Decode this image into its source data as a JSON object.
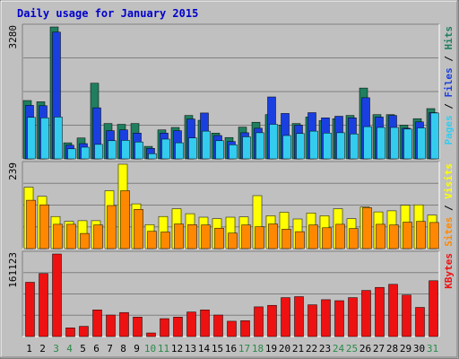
{
  "chart_data": {
    "type": "bar",
    "title": "Daily usage for January 2015",
    "categories": [
      "1",
      "2",
      "3",
      "4",
      "5",
      "6",
      "7",
      "8",
      "9",
      "10",
      "11",
      "12",
      "13",
      "14",
      "15",
      "16",
      "17",
      "18",
      "19",
      "20",
      "21",
      "22",
      "23",
      "24",
      "25",
      "26",
      "27",
      "28",
      "29",
      "30",
      "31"
    ],
    "weekend_days": [
      "3",
      "4",
      "10",
      "11",
      "17",
      "18",
      "24",
      "25",
      "31"
    ],
    "panels": [
      {
        "ymax": 3280,
        "ymax_label": "3280",
        "right_label": [
          "Pages",
          " / ",
          "Files",
          " / ",
          "Hits"
        ],
        "series": [
          {
            "name": "Hits",
            "color": "#1f7f5f",
            "values": [
              1450,
              1420,
              3280,
              400,
              520,
              1880,
              880,
              860,
              880,
              310,
              720,
              780,
              1080,
              960,
              640,
              530,
              790,
              910,
              1100,
              840,
              880,
              1040,
              950,
              1000,
              1080,
              1760,
              1100,
              1100,
              840,
              1000,
              1250
            ]
          },
          {
            "name": "Files",
            "color": "#1a3fe0",
            "values": [
              1330,
              1320,
              3150,
              340,
              380,
              1270,
              700,
              720,
              640,
              260,
              640,
              700,
              990,
              1140,
              580,
              430,
              650,
              760,
              1540,
              1130,
              840,
              1150,
              1020,
              1060,
              1020,
              1520,
              1040,
              1080,
              760,
              920,
              1150
            ]
          },
          {
            "name": "Pages",
            "color": "#33ccee",
            "values": [
              1030,
              1020,
              1040,
              250,
              290,
              360,
              450,
              460,
              420,
              130,
              490,
              400,
              520,
              690,
              450,
              350,
              550,
              650,
              860,
              580,
              630,
              690,
              640,
              650,
              620,
              800,
              780,
              780,
              740,
              770,
              1140
            ]
          }
        ]
      },
      {
        "ymax": 239,
        "ymax_label": "239",
        "right_label": [
          "Sites",
          " / ",
          "Visits"
        ],
        "series": [
          {
            "name": "Visits",
            "color": "#ffff00",
            "values": [
              174,
              148,
              91,
              77,
              79,
              79,
              164,
              239,
              127,
              68,
              91,
              113,
              99,
              89,
              85,
              89,
              90,
              150,
              93,
              103,
              84,
              101,
              93,
              113,
              85,
              118,
              104,
              107,
              123,
              124,
              95
            ]
          },
          {
            "name": "Sites",
            "color": "#ff8800",
            "values": [
              137,
              124,
              69,
              69,
              43,
              67,
              122,
              164,
              111,
              49,
              47,
              70,
              68,
              67,
              58,
              44,
              67,
              62,
              70,
              55,
              48,
              67,
              59,
              69,
              57,
              116,
              69,
              67,
              75,
              77,
              74
            ]
          }
        ]
      },
      {
        "ymax": 161123,
        "ymax_label": "161123",
        "right_label": [
          "KBytes"
        ],
        "series": [
          {
            "name": "KBytes",
            "color": "#ee1111",
            "values": [
              106000,
              123000,
              161123,
              17000,
              20000,
              52000,
              42000,
              47000,
              38000,
              7000,
              35000,
              38000,
              48000,
              52000,
              42000,
              30000,
              31000,
              58000,
              61000,
              76000,
              78000,
              62000,
              72000,
              70000,
              76000,
              90000,
              96000,
              102000,
              81000,
              57000,
              109000
            ]
          }
        ]
      }
    ]
  }
}
